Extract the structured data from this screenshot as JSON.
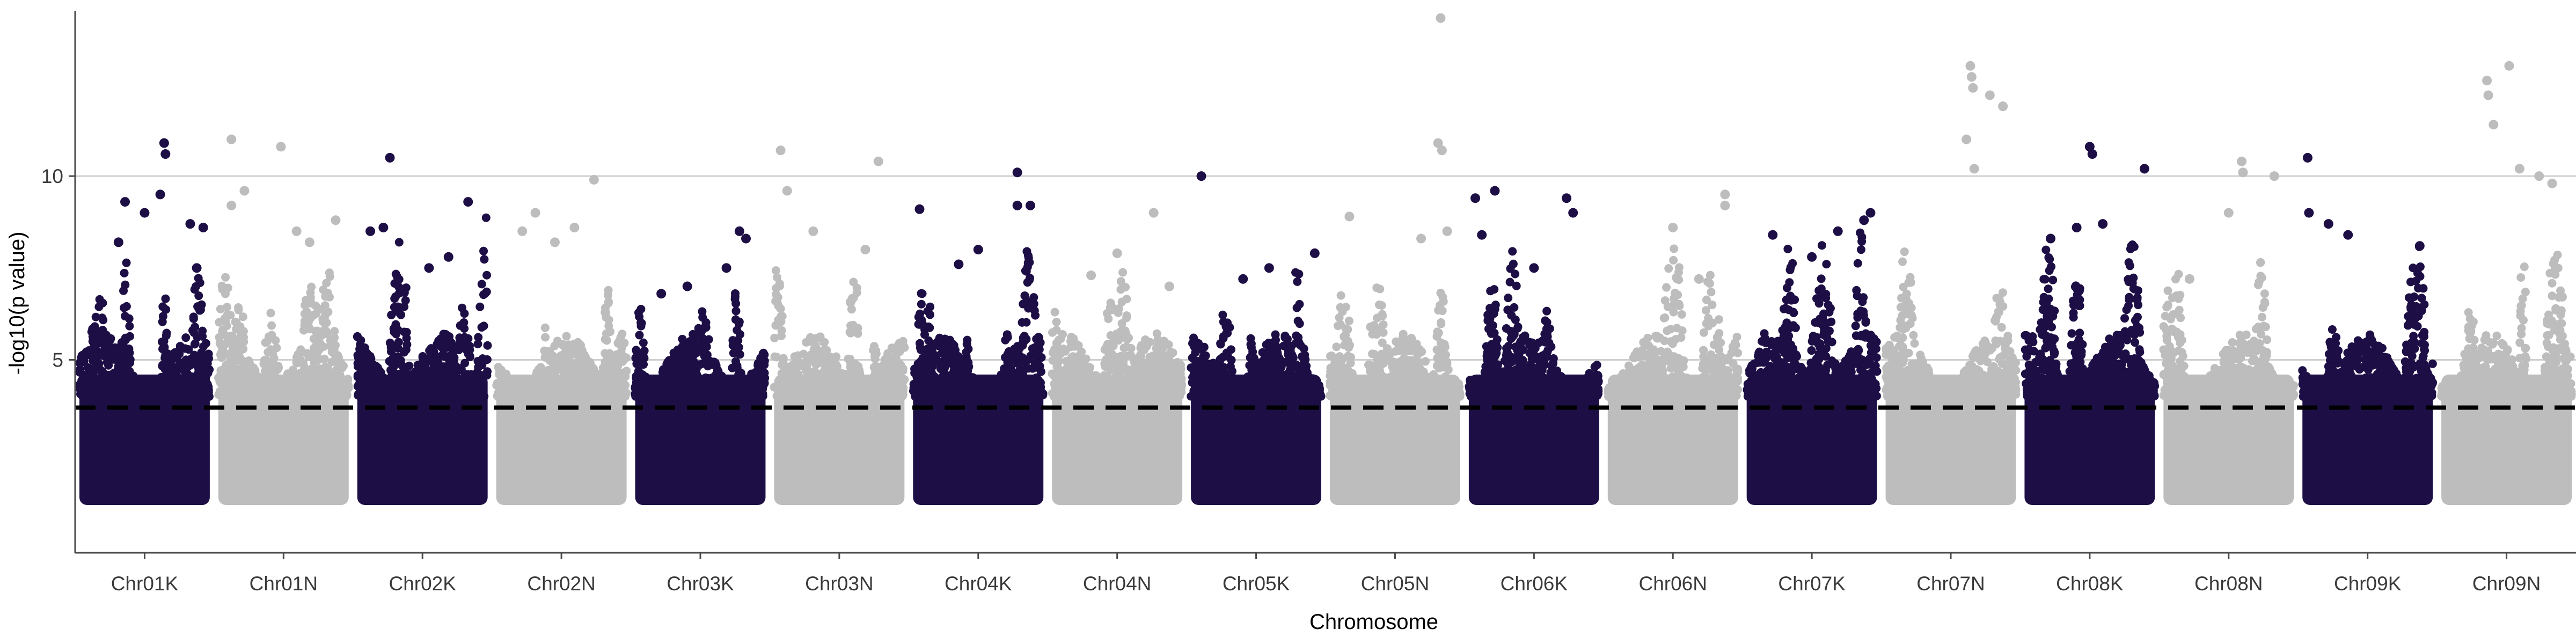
{
  "chart_data": {
    "type": "scatter",
    "xlabel": "Chromosome",
    "ylabel": "-log10(p value)",
    "ylim": [
      -0.25,
      14.5
    ],
    "y_ticks": [
      5,
      10
    ],
    "grid": "horizontal major lines at y ticks",
    "threshold": 3.7,
    "colors": {
      "dark": "#1d0f45",
      "light": "#bdbdbd",
      "threshold": "#000000",
      "grid": "#cfcfcf",
      "axis": "#4a4a4a"
    },
    "series": [
      {
        "name": "Chr01K",
        "color": "dark",
        "max": 11.0,
        "tall": [
          [
            0.65,
            10.9
          ],
          [
            0.66,
            10.6
          ],
          [
            0.62,
            9.5
          ],
          [
            0.35,
            9.3
          ],
          [
            0.5,
            9.0
          ],
          [
            0.85,
            8.7
          ],
          [
            0.95,
            8.6
          ],
          [
            0.9,
            7.5
          ],
          [
            0.3,
            8.2
          ]
        ]
      },
      {
        "name": "Chr01N",
        "color": "light",
        "max": 11.1,
        "tall": [
          [
            0.1,
            11.0
          ],
          [
            0.48,
            10.8
          ],
          [
            0.2,
            9.6
          ],
          [
            0.9,
            8.8
          ],
          [
            0.1,
            9.2
          ],
          [
            0.6,
            8.5
          ],
          [
            0.7,
            8.2
          ]
        ]
      },
      {
        "name": "Chr02K",
        "color": "dark",
        "max": 10.5,
        "tall": [
          [
            0.25,
            10.5
          ],
          [
            0.85,
            9.3
          ],
          [
            0.1,
            8.5
          ],
          [
            0.2,
            8.6
          ],
          [
            0.7,
            7.8
          ],
          [
            0.55,
            7.5
          ]
        ]
      },
      {
        "name": "Chr02N",
        "color": "light",
        "max": 9.9,
        "tall": [
          [
            0.75,
            9.9
          ],
          [
            0.3,
            9.0
          ],
          [
            0.6,
            8.6
          ],
          [
            0.2,
            8.5
          ],
          [
            0.45,
            8.2
          ]
        ]
      },
      {
        "name": "Chr03K",
        "color": "dark",
        "max": 8.5,
        "tall": [
          [
            0.8,
            8.5
          ],
          [
            0.85,
            8.3
          ],
          [
            0.7,
            7.5
          ],
          [
            0.4,
            7.0
          ],
          [
            0.2,
            6.8
          ]
        ]
      },
      {
        "name": "Chr03N",
        "color": "light",
        "max": 10.7,
        "tall": [
          [
            0.05,
            10.7
          ],
          [
            0.8,
            10.4
          ],
          [
            0.1,
            9.6
          ],
          [
            0.3,
            8.5
          ],
          [
            0.7,
            8.0
          ]
        ]
      },
      {
        "name": "Chr04K",
        "color": "dark",
        "max": 10.1,
        "tall": [
          [
            0.8,
            10.1
          ],
          [
            0.8,
            9.2
          ],
          [
            0.9,
            9.2
          ],
          [
            0.05,
            9.1
          ],
          [
            0.5,
            8.0
          ],
          [
            0.35,
            7.6
          ]
        ]
      },
      {
        "name": "Chr04N",
        "color": "light",
        "max": 9.0,
        "tall": [
          [
            0.78,
            9.0
          ],
          [
            0.5,
            7.9
          ],
          [
            0.3,
            7.3
          ],
          [
            0.9,
            7.0
          ]
        ]
      },
      {
        "name": "Chr05K",
        "color": "dark",
        "max": 10.0,
        "tall": [
          [
            0.08,
            10.0
          ],
          [
            0.95,
            7.9
          ],
          [
            0.6,
            7.5
          ],
          [
            0.4,
            7.2
          ]
        ]
      },
      {
        "name": "Chr05N",
        "color": "light",
        "max": 14.3,
        "tall": [
          [
            0.85,
            14.3
          ],
          [
            0.83,
            10.9
          ],
          [
            0.86,
            10.7
          ],
          [
            0.15,
            8.9
          ],
          [
            0.7,
            8.3
          ],
          [
            0.9,
            8.5
          ]
        ]
      },
      {
        "name": "Chr06K",
        "color": "dark",
        "max": 9.6,
        "tall": [
          [
            0.2,
            9.6
          ],
          [
            0.05,
            9.4
          ],
          [
            0.75,
            9.4
          ],
          [
            0.8,
            9.0
          ],
          [
            0.1,
            8.4
          ],
          [
            0.5,
            7.5
          ]
        ]
      },
      {
        "name": "Chr06N",
        "color": "light",
        "max": 9.5,
        "tall": [
          [
            0.9,
            9.5
          ],
          [
            0.9,
            9.2
          ],
          [
            0.5,
            8.6
          ],
          [
            0.7,
            7.2
          ]
        ]
      },
      {
        "name": "Chr07K",
        "color": "dark",
        "max": 9.0,
        "tall": [
          [
            0.95,
            9.0
          ],
          [
            0.9,
            8.8
          ],
          [
            0.7,
            8.5
          ],
          [
            0.2,
            8.4
          ],
          [
            0.5,
            7.8
          ]
        ]
      },
      {
        "name": "Chr07N",
        "color": "light",
        "max": 13.0,
        "tall": [
          [
            0.65,
            13.0
          ],
          [
            0.66,
            12.7
          ],
          [
            0.67,
            12.4
          ],
          [
            0.8,
            12.2
          ],
          [
            0.9,
            11.9
          ],
          [
            0.62,
            11.0
          ],
          [
            0.68,
            10.2
          ]
        ]
      },
      {
        "name": "Chr08K",
        "color": "dark",
        "max": 10.8,
        "tall": [
          [
            0.5,
            10.8
          ],
          [
            0.52,
            10.6
          ],
          [
            0.92,
            10.2
          ],
          [
            0.6,
            8.7
          ],
          [
            0.4,
            8.6
          ],
          [
            0.2,
            8.3
          ]
        ]
      },
      {
        "name": "Chr08N",
        "color": "light",
        "max": 10.4,
        "tall": [
          [
            0.6,
            10.4
          ],
          [
            0.61,
            10.1
          ],
          [
            0.85,
            10.0
          ],
          [
            0.5,
            9.0
          ],
          [
            0.2,
            7.2
          ]
        ]
      },
      {
        "name": "Chr09K",
        "color": "dark",
        "max": 10.5,
        "tall": [
          [
            0.04,
            10.5
          ],
          [
            0.05,
            9.0
          ],
          [
            0.2,
            8.7
          ],
          [
            0.35,
            8.4
          ],
          [
            0.9,
            8.1
          ]
        ]
      },
      {
        "name": "Chr09N",
        "color": "light",
        "max": 13.0,
        "tall": [
          [
            0.52,
            13.0
          ],
          [
            0.35,
            12.6
          ],
          [
            0.36,
            12.2
          ],
          [
            0.6,
            10.2
          ],
          [
            0.75,
            10.0
          ],
          [
            0.85,
            9.8
          ],
          [
            0.4,
            11.4
          ]
        ]
      }
    ]
  }
}
